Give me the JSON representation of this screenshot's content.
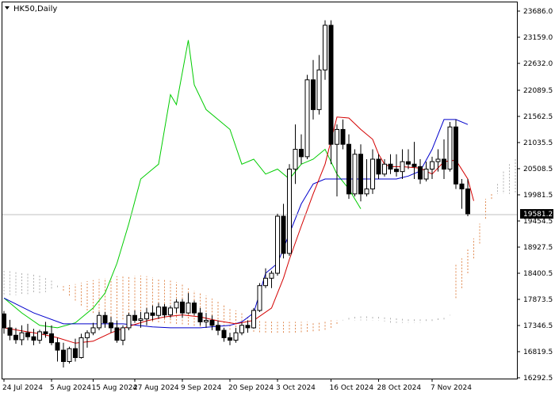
{
  "chart_data": {
    "type": "candlestick",
    "symbol": "HK50",
    "timeframe": "Daily",
    "title": "HK50,Daily",
    "current_price": "19581.2",
    "y_ticks": [
      "23686.0",
      "23159.0",
      "22632.0",
      "22089.5",
      "21562.5",
      "21035.5",
      "20508.5",
      "19981.5",
      "19454.5",
      "18927.5",
      "18400.5",
      "17873.5",
      "17346.5",
      "16819.5",
      "16292.5"
    ],
    "x_ticks": [
      "24 Jul 2024",
      "5 Aug 2024",
      "15 Aug 2024",
      "27 Aug 2024",
      "9 Sep 2024",
      "20 Sep 2024",
      "3 Oct 2024",
      "16 Oct 2024",
      "28 Oct 2024",
      "7 Nov 2024"
    ],
    "ylim": [
      16292.5,
      23686.0
    ],
    "grid": false,
    "colors": {
      "bull": "#ffffff",
      "bear": "#000000",
      "tenkan": "#d40000",
      "kijun": "#0000cc",
      "chikou": "#00cc00",
      "cloud_bear": "#e08a50",
      "cloud_bull": "#b0b0b0",
      "price_line": "#c0c0c0"
    },
    "candles": [
      [
        17580,
        17640,
        17180,
        17300
      ],
      [
        17300,
        17460,
        17050,
        17150
      ],
      [
        17150,
        17300,
        16980,
        17060
      ],
      [
        17060,
        17350,
        16950,
        17200
      ],
      [
        17200,
        17380,
        17050,
        17120
      ],
      [
        17120,
        17280,
        16950,
        17050
      ],
      [
        17050,
        17260,
        16980,
        17220
      ],
      [
        17220,
        17420,
        17100,
        17180
      ],
      [
        17180,
        17350,
        16950,
        17000
      ],
      [
        17000,
        17100,
        16620,
        16850
      ],
      [
        16850,
        17000,
        16500,
        16620
      ],
      [
        16620,
        16920,
        16580,
        16880
      ],
      [
        16880,
        17080,
        16620,
        16700
      ],
      [
        16700,
        17180,
        16680,
        17100
      ],
      [
        17100,
        17250,
        16900,
        17200
      ],
      [
        17200,
        17400,
        17150,
        17300
      ],
      [
        17300,
        17620,
        17250,
        17550
      ],
      [
        17550,
        17620,
        17300,
        17400
      ],
      [
        17400,
        17520,
        17200,
        17300
      ],
      [
        17300,
        17450,
        17000,
        17050
      ],
      [
        17050,
        17350,
        16950,
        17300
      ],
      [
        17300,
        17600,
        17250,
        17550
      ],
      [
        17550,
        17650,
        17400,
        17450
      ],
      [
        17450,
        17620,
        17300,
        17480
      ],
      [
        17480,
        17700,
        17350,
        17600
      ],
      [
        17600,
        17750,
        17450,
        17550
      ],
      [
        17550,
        17800,
        17480,
        17720
      ],
      [
        17720,
        17780,
        17500,
        17560
      ],
      [
        17560,
        17750,
        17500,
        17700
      ],
      [
        17700,
        17880,
        17600,
        17820
      ],
      [
        17820,
        17880,
        17500,
        17600
      ],
      [
        17600,
        18000,
        17580,
        17800
      ],
      [
        17800,
        17850,
        17550,
        17600
      ],
      [
        17600,
        17700,
        17350,
        17420
      ],
      [
        17420,
        17600,
        17300,
        17450
      ],
      [
        17450,
        17550,
        17250,
        17350
      ],
      [
        17350,
        17450,
        17150,
        17250
      ],
      [
        17250,
        17300,
        17020,
        17100
      ],
      [
        17100,
        17200,
        16950,
        17050
      ],
      [
        17050,
        17300,
        17000,
        17200
      ],
      [
        17200,
        17400,
        17150,
        17350
      ],
      [
        17350,
        17450,
        17200,
        17300
      ],
      [
        17300,
        17700,
        17280,
        17650
      ],
      [
        17650,
        18200,
        17620,
        18150
      ],
      [
        18150,
        18500,
        18100,
        18300
      ],
      [
        18300,
        18450,
        18100,
        18400
      ],
      [
        18400,
        19600,
        18350,
        19550
      ],
      [
        19550,
        19800,
        18700,
        18800
      ],
      [
        18800,
        20600,
        18750,
        20500
      ],
      [
        20500,
        21400,
        20200,
        20900
      ],
      [
        20900,
        21200,
        20600,
        20750
      ],
      [
        20750,
        22400,
        20700,
        22300
      ],
      [
        22300,
        22700,
        21500,
        21700
      ],
      [
        21700,
        22800,
        21600,
        22500
      ],
      [
        22500,
        23500,
        22300,
        23400
      ],
      [
        23400,
        23500,
        20600,
        21000
      ],
      [
        21000,
        21400,
        19950,
        21300
      ],
      [
        21300,
        21500,
        20900,
        21000
      ],
      [
        21000,
        21200,
        19900,
        20000
      ],
      [
        20000,
        20900,
        19950,
        20800
      ],
      [
        20800,
        21000,
        19850,
        20000
      ],
      [
        20000,
        20700,
        19950,
        20100
      ],
      [
        20100,
        20900,
        20000,
        20700
      ],
      [
        20700,
        20800,
        20300,
        20400
      ],
      [
        20400,
        20700,
        20350,
        20600
      ],
      [
        20600,
        20800,
        20400,
        20500
      ],
      [
        20500,
        20800,
        20350,
        20450
      ],
      [
        20450,
        20900,
        20300,
        20650
      ],
      [
        20650,
        20900,
        20500,
        20600
      ],
      [
        20600,
        21050,
        20300,
        20550
      ],
      [
        20550,
        20700,
        20200,
        20300
      ],
      [
        20300,
        20650,
        20250,
        20500
      ],
      [
        20500,
        20750,
        20300,
        20650
      ],
      [
        20650,
        20900,
        20450,
        20700
      ],
      [
        20700,
        21100,
        20300,
        20500
      ],
      [
        20500,
        21450,
        20450,
        21350
      ],
      [
        21350,
        21500,
        20100,
        20200
      ],
      [
        20200,
        20300,
        19700,
        20100
      ],
      [
        20100,
        20300,
        19550,
        19600
      ]
    ],
    "tenkan": [
      [
        0,
        17300
      ],
      [
        3,
        17240
      ],
      [
        6,
        17180
      ],
      [
        9,
        17100
      ],
      [
        12,
        16990
      ],
      [
        15,
        17030
      ],
      [
        18,
        17200
      ],
      [
        21,
        17330
      ],
      [
        24,
        17440
      ],
      [
        27,
        17520
      ],
      [
        30,
        17560
      ],
      [
        33,
        17520
      ],
      [
        36,
        17440
      ],
      [
        39,
        17380
      ],
      [
        42,
        17450
      ],
      [
        45,
        17700
      ],
      [
        47,
        18300
      ],
      [
        48,
        18680
      ],
      [
        50,
        19350
      ],
      [
        52,
        20000
      ],
      [
        54,
        20600
      ],
      [
        56,
        21550
      ],
      [
        58,
        21530
      ],
      [
        60,
        21300
      ],
      [
        62,
        21100
      ],
      [
        63,
        20800
      ],
      [
        64,
        20600
      ],
      [
        65,
        20550
      ],
      [
        67,
        20550
      ],
      [
        70,
        20520
      ],
      [
        72,
        20400
      ],
      [
        74,
        20650
      ],
      [
        76,
        20680
      ],
      [
        78,
        20300
      ],
      [
        79,
        19860
      ]
    ],
    "kijun": [
      [
        0,
        17900
      ],
      [
        5,
        17600
      ],
      [
        10,
        17380
      ],
      [
        15,
        17380
      ],
      [
        20,
        17380
      ],
      [
        25,
        17320
      ],
      [
        28,
        17300
      ],
      [
        33,
        17300
      ],
      [
        38,
        17350
      ],
      [
        40,
        17420
      ],
      [
        42,
        17600
      ],
      [
        44,
        18400
      ],
      [
        46,
        18600
      ],
      [
        48,
        19200
      ],
      [
        50,
        19800
      ],
      [
        52,
        20200
      ],
      [
        54,
        20300
      ],
      [
        58,
        20300
      ],
      [
        62,
        20300
      ],
      [
        66,
        20300
      ],
      [
        68,
        20360
      ],
      [
        70,
        20460
      ],
      [
        72,
        20900
      ],
      [
        74,
        21500
      ],
      [
        76,
        21500
      ],
      [
        78,
        21400
      ]
    ],
    "chikou": [
      [
        0,
        17900
      ],
      [
        3,
        17600
      ],
      [
        6,
        17350
      ],
      [
        9,
        17300
      ],
      [
        12,
        17400
      ],
      [
        15,
        17700
      ],
      [
        17,
        18000
      ],
      [
        19,
        18600
      ],
      [
        21,
        19400
      ],
      [
        23,
        20300
      ],
      [
        25,
        20500
      ],
      [
        26,
        20600
      ],
      [
        28,
        22000
      ],
      [
        29,
        21800
      ],
      [
        31,
        23100
      ],
      [
        32,
        22200
      ],
      [
        34,
        21700
      ],
      [
        36,
        21500
      ],
      [
        38,
        21300
      ],
      [
        40,
        20600
      ],
      [
        42,
        20700
      ],
      [
        44,
        20400
      ],
      [
        46,
        20500
      ],
      [
        48,
        20300
      ],
      [
        50,
        20600
      ],
      [
        52,
        20700
      ],
      [
        54,
        20900
      ],
      [
        56,
        20400
      ],
      [
        58,
        20100
      ],
      [
        60,
        19700
      ]
    ],
    "cloud": {
      "start_index": 0,
      "span_a": [
        18450,
        18440,
        18420,
        18400,
        18390,
        18370,
        18350,
        18300,
        18250,
        18150,
        18050,
        17950,
        17850,
        17750,
        17650,
        17600,
        17560,
        17530,
        17510,
        17490,
        17470,
        17460,
        17450,
        17440,
        17430,
        17420,
        17410,
        17400,
        17390,
        17380,
        17370,
        17360,
        17340,
        17320,
        17300,
        17290,
        17280,
        17270,
        17260,
        17250,
        17240,
        17230,
        17220,
        17210,
        17205,
        17200,
        17200,
        17200,
        17200,
        17205,
        17210,
        17220,
        17230,
        17240,
        17260,
        17300,
        17380,
        17460,
        17500,
        17520,
        17530,
        17530,
        17520,
        17520,
        17510,
        17500,
        17490,
        17480,
        17470,
        17470,
        17470,
        17470,
        17470,
        17490,
        17500,
        17560,
        17900,
        18100,
        18400,
        18700,
        19000,
        19500,
        19900,
        20200,
        20450,
        20600,
        20700,
        20800
      ],
      "span_b": [
        17950,
        17950,
        17960,
        17970,
        17980,
        17990,
        18000,
        18020,
        18060,
        18100,
        18140,
        18160,
        18180,
        18210,
        18240,
        18260,
        18280,
        18300,
        18320,
        18340,
        18350,
        18350,
        18350,
        18350,
        18340,
        18320,
        18300,
        18280,
        18250,
        18220,
        18170,
        18100,
        18050,
        18000,
        17950,
        17890,
        17830,
        17760,
        17700,
        17650,
        17600,
        17540,
        17500,
        17460,
        17440,
        17430,
        17420,
        17420,
        17420,
        17420,
        17420,
        17420,
        17420,
        17430,
        17450,
        17450,
        17450,
        17450,
        17450,
        17450,
        17450,
        17450,
        17450,
        17450,
        17430,
        17400,
        17400,
        17400,
        17400,
        17400,
        17400,
        17420,
        17430,
        17450,
        17470,
        17550,
        18600,
        18700,
        18900,
        19100,
        19400,
        19900,
        20000,
        20000,
        20000,
        20000,
        20000,
        20000
      ]
    }
  }
}
